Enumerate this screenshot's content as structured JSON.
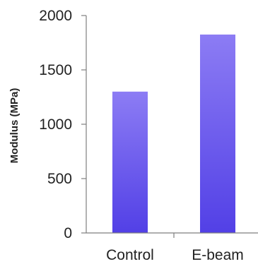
{
  "chart_data": {
    "type": "bar",
    "categories": [
      "Control",
      "E-beam"
    ],
    "values": [
      1300,
      1825
    ],
    "ylabel": "Modulus (MPa)",
    "ylim": [
      0,
      2000
    ],
    "yticks": [
      "0",
      "500",
      "1000",
      "1500",
      "2000"
    ],
    "grid": false,
    "legend": "none",
    "colors": {
      "bar_top": "#8c7cf4",
      "bar_bottom": "#5240e6",
      "axis": "#7f7f7f",
      "text": "#222222"
    }
  }
}
